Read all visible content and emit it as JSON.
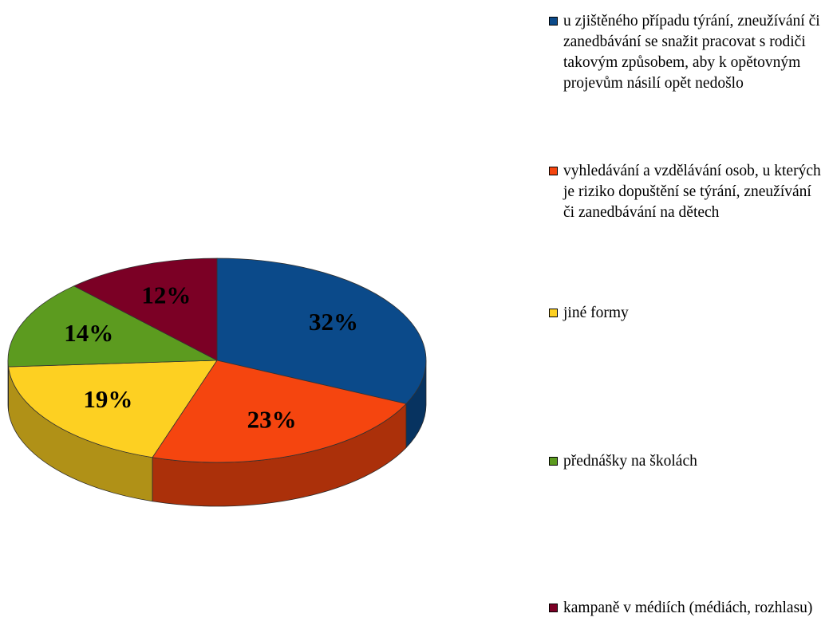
{
  "chart_data": {
    "type": "pie",
    "categories": [
      "u zjištěného případu týrání, zneužívání či zanedbávání se snažit pracovat s rodiči takovým způsobem, aby k opětovným projevům násilí opět nedošlo",
      "vyhledávání a vzdělávání osob, u kterých je riziko dopuštění se týrání, zneužívání či zanedbávání na dětech",
      "jiné formy",
      "přednášky na školách",
      "kampaně v médiích (médiách, rozhlasu)"
    ],
    "values": [
      32,
      23,
      19,
      14,
      12
    ],
    "value_labels": [
      "32%",
      "23%",
      "19%",
      "14%",
      "12%"
    ],
    "colors": [
      "#0b4a8a",
      "#f5450f",
      "#fdd022",
      "#5c9b1f",
      "#7b0025"
    ],
    "legend": "right"
  }
}
